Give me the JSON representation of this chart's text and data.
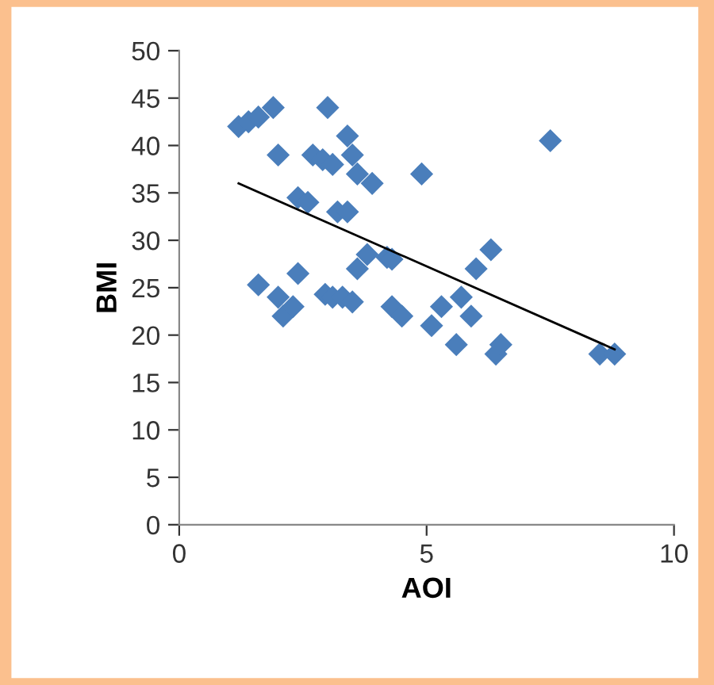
{
  "chart_data": {
    "type": "scatter",
    "xlabel": "AOI",
    "ylabel": "BMI",
    "marker": "diamond",
    "grid": false,
    "legend": false,
    "xlim": [
      0,
      10
    ],
    "xticks": [
      0,
      5,
      10
    ],
    "ylim": [
      0,
      50
    ],
    "yticks": [
      0,
      5,
      10,
      15,
      20,
      25,
      30,
      35,
      40,
      45,
      50
    ],
    "series": [
      {
        "color": "#4a7ebb",
        "x": [
          1.2,
          1.4,
          1.6,
          1.9,
          2.0,
          1.6,
          2.0,
          2.1,
          2.3,
          2.4,
          2.4,
          2.6,
          2.7,
          3.0,
          2.9,
          3.1,
          2.95,
          3.1,
          3.3,
          3.5,
          3.2,
          3.4,
          3.4,
          3.5,
          3.6,
          3.9,
          3.6,
          3.8,
          4.2,
          4.3,
          4.3,
          4.5,
          4.9,
          5.1,
          5.3,
          5.6,
          5.7,
          5.9,
          6.0,
          6.3,
          6.4,
          6.5,
          7.5,
          8.5,
          8.8
        ],
        "values": [
          42,
          42.5,
          43,
          44,
          39,
          25.3,
          24,
          22,
          23,
          26.5,
          34.5,
          34,
          39,
          44,
          38.5,
          38,
          24.3,
          24,
          24,
          23.5,
          33,
          33,
          41,
          39,
          37,
          36,
          27,
          28.5,
          28.2,
          28,
          23,
          22,
          37,
          21,
          23,
          19,
          24,
          22,
          27,
          29,
          18,
          19,
          40.5,
          18,
          18
        ]
      },
      {
        "type": "line",
        "color": "#000000",
        "marker": "none",
        "x": [
          1.2,
          8.8
        ],
        "values": [
          36,
          18.5
        ]
      }
    ]
  }
}
